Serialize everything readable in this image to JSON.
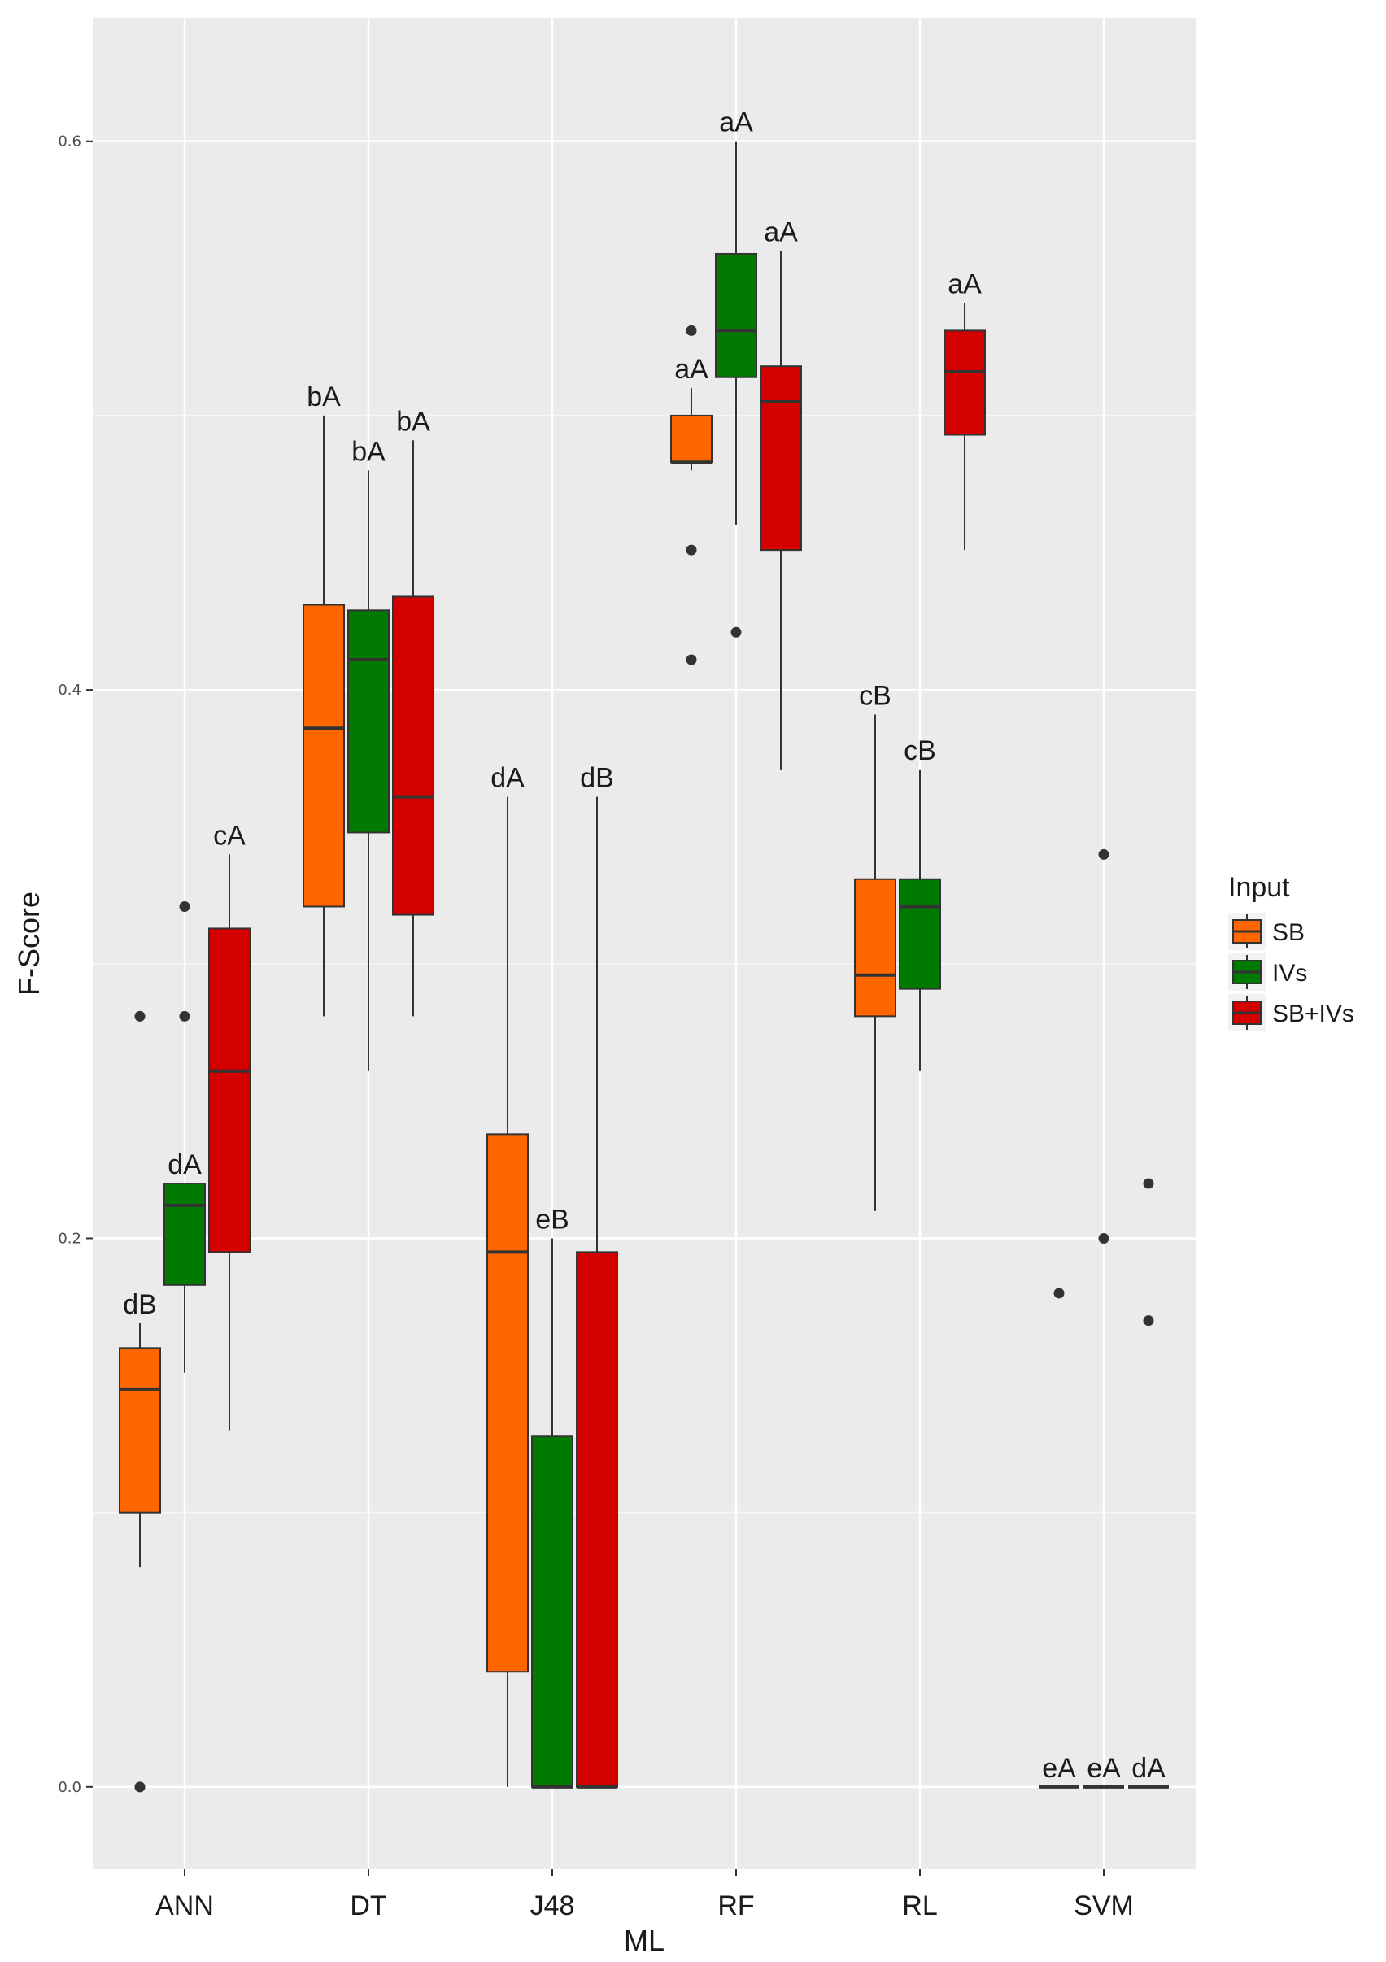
{
  "chart_data": {
    "type": "boxplot",
    "xlabel": "ML",
    "ylabel": "F-Score",
    "ylim": [
      -0.03,
      0.645
    ],
    "yticks": [
      0.0,
      0.2,
      0.4,
      0.6
    ],
    "ytick_labels": [
      "0.0",
      "0.2",
      "0.4",
      "0.6"
    ],
    "categories": [
      "ANN",
      "DT",
      "J48",
      "RF",
      "RL",
      "SVM"
    ],
    "legend": {
      "title": "Input",
      "position": "right",
      "entries": [
        {
          "name": "SB",
          "color": "#FF6600"
        },
        {
          "name": "IVs",
          "color": "#007A00"
        },
        {
          "name": "SB+IVs",
          "color": "#D40000"
        }
      ]
    },
    "boxes": [
      {
        "category": "ANN",
        "series": "SB",
        "whisker_low": 0.08,
        "q1": 0.1,
        "median": 0.145,
        "q3": 0.16,
        "whisker_high": 0.169,
        "outliers": [
          0.0,
          0.281
        ],
        "label": "dB"
      },
      {
        "category": "ANN",
        "series": "IVs",
        "whisker_low": 0.151,
        "q1": 0.183,
        "median": 0.212,
        "q3": 0.22,
        "whisker_high": 0.22,
        "outliers": [
          0.281,
          0.321
        ],
        "label": "dA"
      },
      {
        "category": "ANN",
        "series": "SB+IVs",
        "whisker_low": 0.13,
        "q1": 0.195,
        "median": 0.261,
        "q3": 0.313,
        "whisker_high": 0.34,
        "outliers": [],
        "label": "cA"
      },
      {
        "category": "DT",
        "series": "SB",
        "whisker_low": 0.281,
        "q1": 0.321,
        "median": 0.386,
        "q3": 0.431,
        "whisker_high": 0.5,
        "outliers": [],
        "label": "bA"
      },
      {
        "category": "DT",
        "series": "IVs",
        "whisker_low": 0.261,
        "q1": 0.348,
        "median": 0.411,
        "q3": 0.429,
        "whisker_high": 0.48,
        "outliers": [],
        "label": "bA"
      },
      {
        "category": "DT",
        "series": "SB+IVs",
        "whisker_low": 0.281,
        "q1": 0.318,
        "median": 0.361,
        "q3": 0.434,
        "whisker_high": 0.491,
        "outliers": [],
        "label": "bA"
      },
      {
        "category": "J48",
        "series": "SB",
        "whisker_low": 0.0,
        "q1": 0.042,
        "median": 0.195,
        "q3": 0.238,
        "whisker_high": 0.361,
        "outliers": [],
        "label": "dA"
      },
      {
        "category": "J48",
        "series": "IVs",
        "whisker_low": 0.0,
        "q1": 0.0,
        "median": 0.0,
        "q3": 0.128,
        "whisker_high": 0.2,
        "outliers": [],
        "label": "eB"
      },
      {
        "category": "J48",
        "series": "SB+IVs",
        "whisker_low": 0.0,
        "q1": 0.0,
        "median": 0.0,
        "q3": 0.195,
        "whisker_high": 0.361,
        "outliers": [],
        "label": "dB"
      },
      {
        "category": "RF",
        "series": "SB",
        "whisker_low": 0.48,
        "q1": 0.483,
        "median": 0.483,
        "q3": 0.5,
        "whisker_high": 0.51,
        "outliers": [
          0.411,
          0.451,
          0.531
        ],
        "label": "aA"
      },
      {
        "category": "RF",
        "series": "IVs",
        "whisker_low": 0.46,
        "q1": 0.514,
        "median": 0.531,
        "q3": 0.559,
        "whisker_high": 0.6,
        "outliers": [
          0.421
        ],
        "label": "aA"
      },
      {
        "category": "RF",
        "series": "SB+IVs",
        "whisker_low": 0.371,
        "q1": 0.451,
        "median": 0.505,
        "q3": 0.518,
        "whisker_high": 0.56,
        "outliers": [],
        "label": "aA"
      },
      {
        "category": "RL",
        "series": "SB",
        "whisker_low": 0.21,
        "q1": 0.281,
        "median": 0.296,
        "q3": 0.331,
        "whisker_high": 0.391,
        "outliers": [],
        "label": "cB"
      },
      {
        "category": "RL",
        "series": "IVs",
        "whisker_low": 0.261,
        "q1": 0.291,
        "median": 0.321,
        "q3": 0.331,
        "whisker_high": 0.371,
        "outliers": [],
        "label": "cB"
      },
      {
        "category": "RL",
        "series": "SB+IVs",
        "whisker_low": 0.451,
        "q1": 0.493,
        "median": 0.516,
        "q3": 0.531,
        "whisker_high": 0.541,
        "outliers": [],
        "label": "aA"
      },
      {
        "category": "SVM",
        "series": "SB",
        "whisker_low": 0.0,
        "q1": 0.0,
        "median": 0.0,
        "q3": 0.0,
        "whisker_high": 0.0,
        "outliers": [
          0.18
        ],
        "label": "eA"
      },
      {
        "category": "SVM",
        "series": "IVs",
        "whisker_low": 0.0,
        "q1": 0.0,
        "median": 0.0,
        "q3": 0.0,
        "whisker_high": 0.0,
        "outliers": [
          0.2,
          0.34
        ],
        "label": "eA"
      },
      {
        "category": "SVM",
        "series": "SB+IVs",
        "whisker_low": 0.0,
        "q1": 0.0,
        "median": 0.0,
        "q3": 0.0,
        "whisker_high": 0.0,
        "outliers": [
          0.17,
          0.22
        ],
        "label": "dA"
      }
    ]
  }
}
